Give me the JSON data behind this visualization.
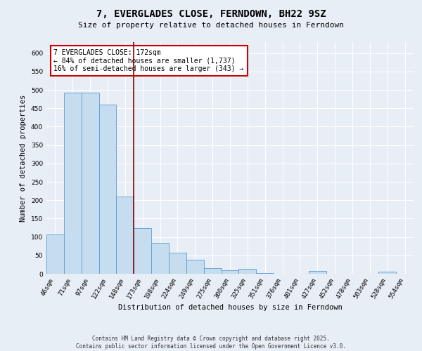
{
  "title": "7, EVERGLADES CLOSE, FERNDOWN, BH22 9SZ",
  "subtitle": "Size of property relative to detached houses in Ferndown",
  "xlabel": "Distribution of detached houses by size in Ferndown",
  "ylabel": "Number of detached properties",
  "categories": [
    "46sqm",
    "71sqm",
    "97sqm",
    "122sqm",
    "148sqm",
    "173sqm",
    "198sqm",
    "224sqm",
    "249sqm",
    "275sqm",
    "300sqm",
    "325sqm",
    "351sqm",
    "376sqm",
    "401sqm",
    "427sqm",
    "452sqm",
    "478sqm",
    "503sqm",
    "528sqm",
    "554sqm"
  ],
  "values": [
    107,
    492,
    492,
    460,
    210,
    125,
    84,
    57,
    39,
    16,
    10,
    13,
    2,
    0,
    0,
    8,
    0,
    0,
    0,
    6,
    0
  ],
  "bar_color": "#c5ddef",
  "bar_edge_color": "#5b9bd5",
  "vline_color": "#8b0000",
  "annotation_text": "7 EVERGLADES CLOSE: 172sqm\n← 84% of detached houses are smaller (1,737)\n16% of semi-detached houses are larger (343) →",
  "annotation_box_color": "#ffffff",
  "annotation_box_edge": "#cc0000",
  "ylim": [
    0,
    630
  ],
  "yticks": [
    0,
    50,
    100,
    150,
    200,
    250,
    300,
    350,
    400,
    450,
    500,
    550,
    600
  ],
  "bg_color": "#e8eef5",
  "grid_color": "#ffffff",
  "footer": "Contains HM Land Registry data © Crown copyright and database right 2025.\nContains public sector information licensed under the Open Government Licence v3.0.",
  "title_fontsize": 10,
  "subtitle_fontsize": 8,
  "axis_label_fontsize": 7.5,
  "tick_fontsize": 6.5,
  "annotation_fontsize": 7,
  "footer_fontsize": 5.5
}
